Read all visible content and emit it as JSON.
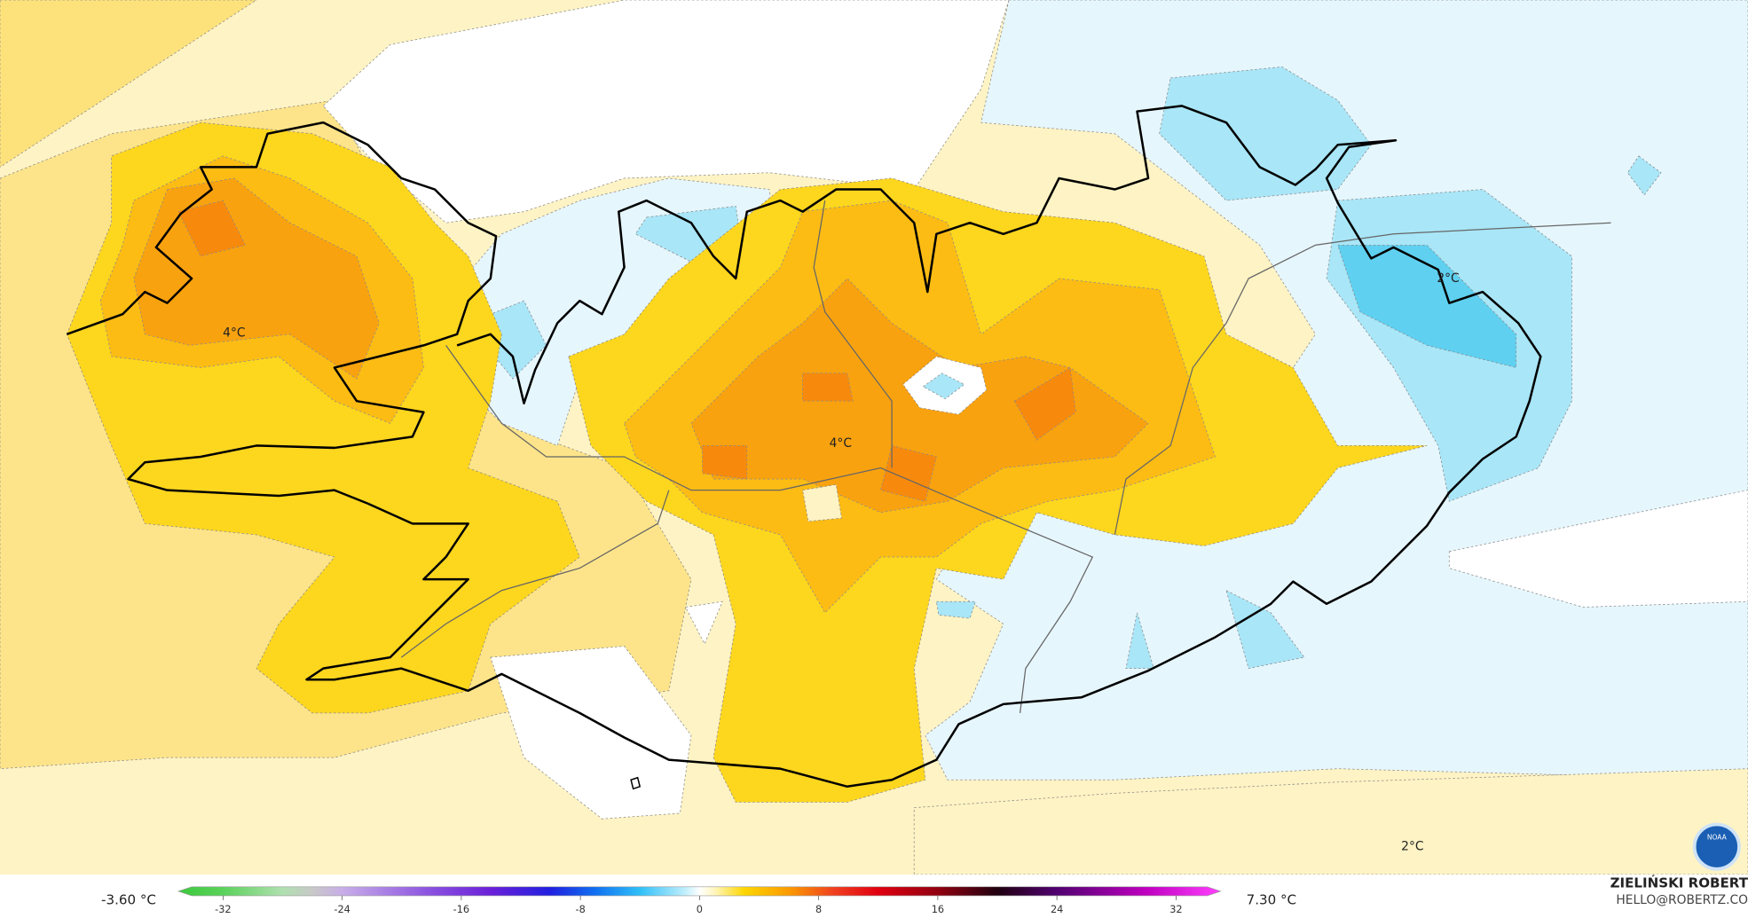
{
  "map_labels": [
    "4°C",
    "4°C",
    "2°C",
    "2°C"
  ],
  "colorbar": {
    "min_label": "-3.60 °C",
    "max_label": "7.30 °C",
    "range": [
      -35,
      35
    ],
    "ticks": [
      -32,
      -24,
      -16,
      -8,
      0,
      8,
      16,
      24,
      32
    ]
  },
  "credit": {
    "name": "ZIELIŃSKI ROBERT",
    "contact": "HELLO@ROBERTZ.CO"
  },
  "logo": "NOAA"
}
